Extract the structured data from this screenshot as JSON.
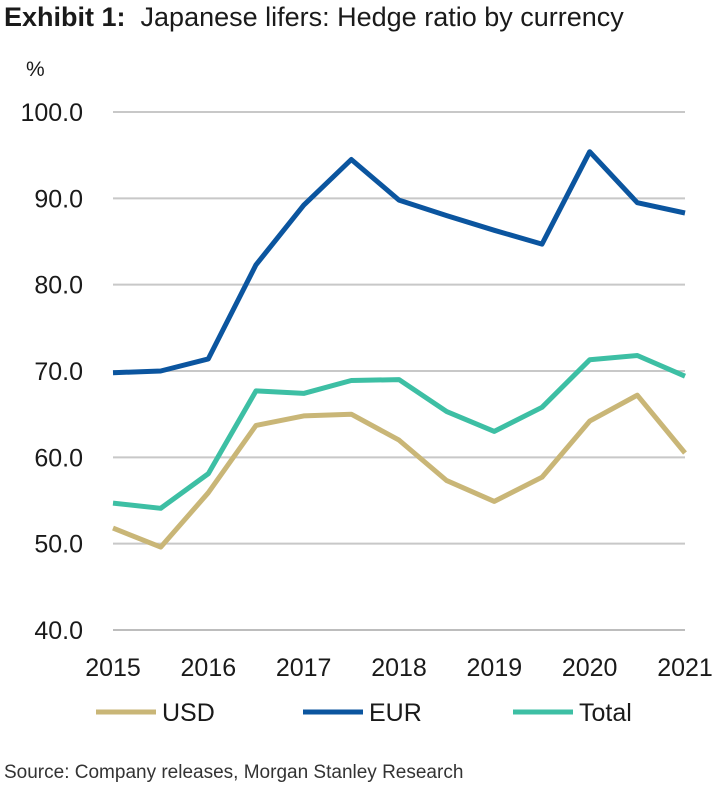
{
  "title_exhibit": "Exhibit 1:",
  "title_text": "Japanese lifers: Hedge ratio by currency",
  "source": "Source: Company releases, Morgan Stanley Research",
  "chart_data": {
    "type": "line",
    "ylabel": "%",
    "ylim": [
      40,
      100
    ],
    "y_ticks": [
      "40.0",
      "50.0",
      "60.0",
      "70.0",
      "80.0",
      "90.0",
      "100.0"
    ],
    "x_tick_labels": [
      "2015",
      "2016",
      "2017",
      "2018",
      "2019",
      "2020",
      "2021"
    ],
    "x": [
      2015.0,
      2015.5,
      2016.0,
      2016.5,
      2017.0,
      2017.5,
      2018.0,
      2018.5,
      2019.0,
      2019.5,
      2020.0,
      2020.5,
      2021.0
    ],
    "xlim": [
      2015,
      2021
    ],
    "grid": "horizontal",
    "legend_position": "bottom",
    "series": [
      {
        "name": "USD",
        "color": "#c9b677",
        "values": [
          51.8,
          49.6,
          55.9,
          63.7,
          64.8,
          65.0,
          62.0,
          57.3,
          54.9,
          57.7,
          64.2,
          67.2,
          60.5
        ]
      },
      {
        "name": "EUR",
        "color": "#0b559f",
        "values": [
          69.8,
          70.0,
          71.4,
          82.3,
          89.2,
          94.5,
          89.8,
          88.0,
          86.3,
          84.7,
          95.4,
          89.5,
          88.3
        ]
      },
      {
        "name": "Total",
        "color": "#3dbfa4",
        "values": [
          54.7,
          54.1,
          58.1,
          67.7,
          67.4,
          68.9,
          69.0,
          65.3,
          63.0,
          65.8,
          71.3,
          71.8,
          69.4
        ]
      }
    ]
  }
}
